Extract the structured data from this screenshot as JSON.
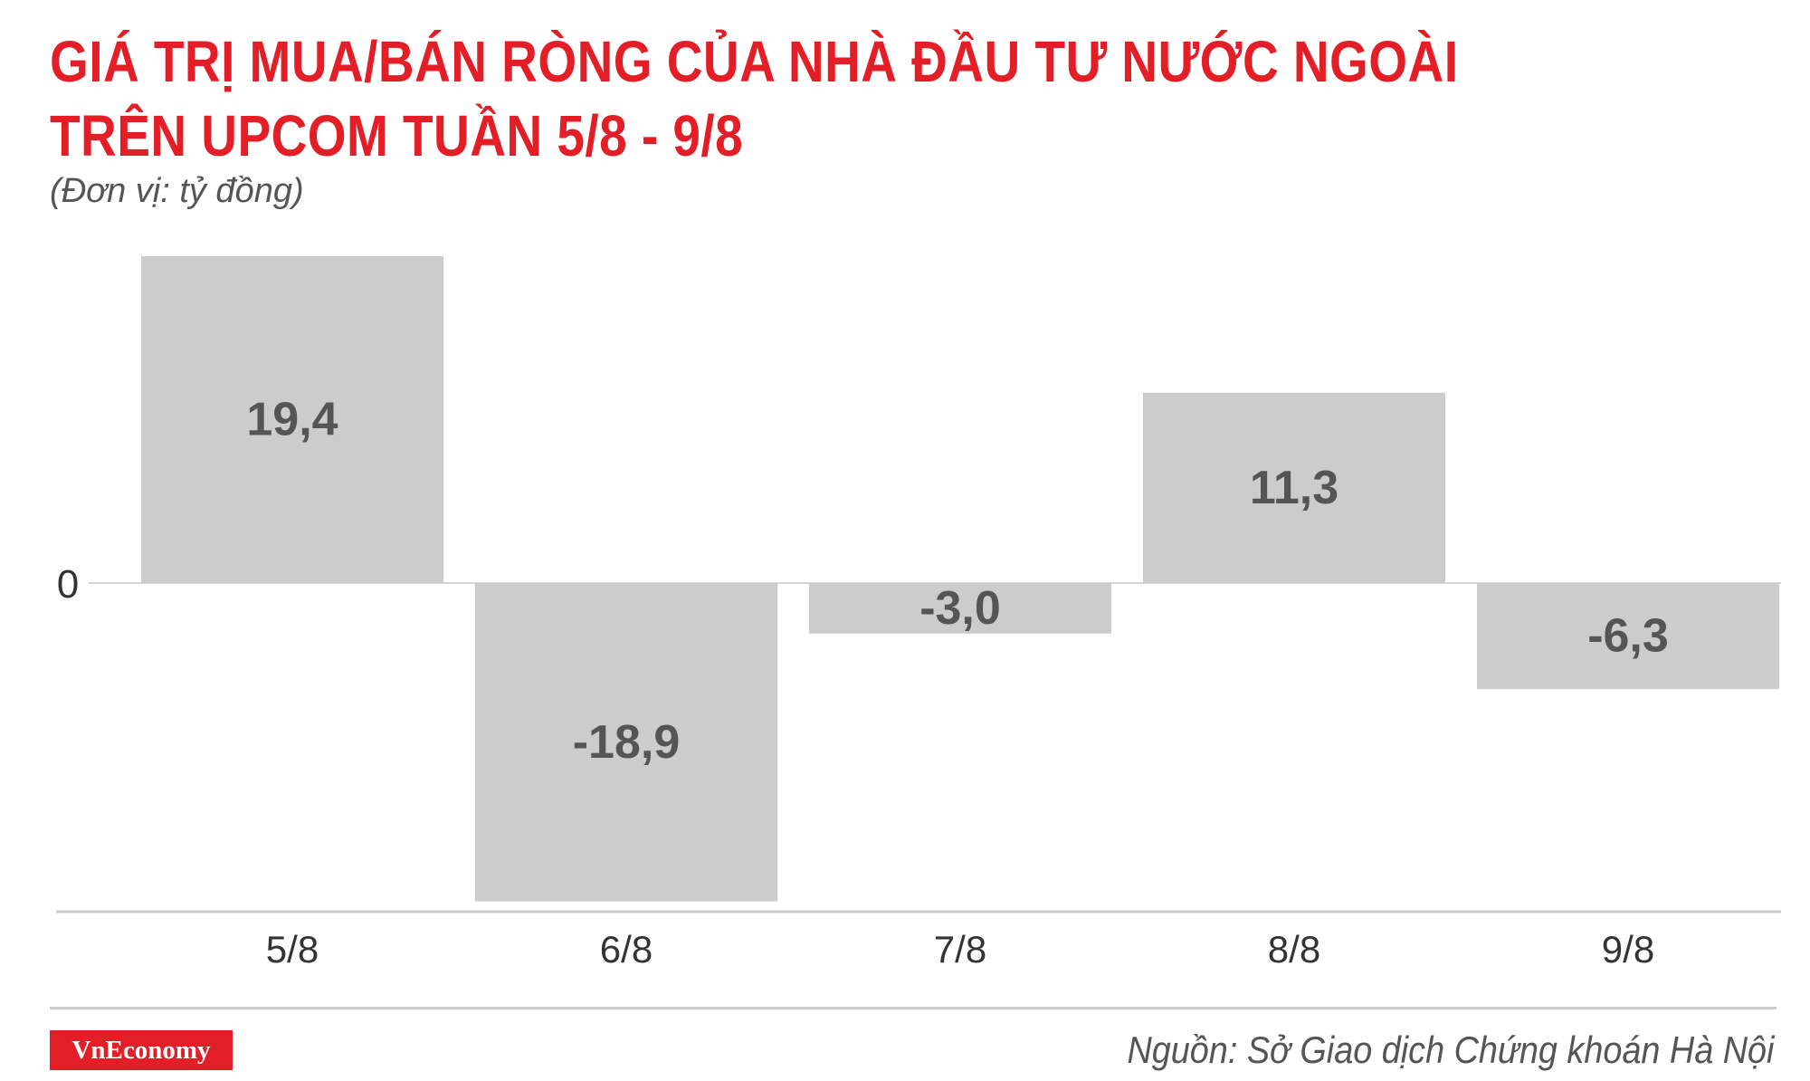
{
  "colors": {
    "title": "#e31e26",
    "bar": "#cccccc",
    "bar_label": "#555555",
    "axis_text": "#333333",
    "brand_bg": "#e31e26"
  },
  "title_lines": [
    "GIÁ TRỊ MUA/BÁN RÒNG CỦA NHÀ ĐẦU TƯ NƯỚC NGOÀI",
    "TRÊN UPCOM TUẦN 5/8 - 9/8"
  ],
  "unit": "(Đơn vị: tỷ đồng)",
  "source": "Nguồn: Sở Giao dịch Chứng khoán Hà Nội",
  "brand": "VnEconomy",
  "chart_data": {
    "type": "bar",
    "title": "GIÁ TRỊ MUA/BÁN RÒNG CỦA NHÀ ĐẦU TƯ NƯỚC NGOÀI TRÊN UPCOM TUẦN 5/8 - 9/8",
    "ylabel": "(Đơn vị: tỷ đồng)",
    "categories": [
      "5/8",
      "6/8",
      "7/8",
      "8/8",
      "9/8"
    ],
    "values": [
      19.4,
      -18.9,
      -3.0,
      11.3,
      -6.3
    ],
    "value_labels": [
      "19,4",
      "-18,9",
      "-3,0",
      "11,3",
      "-6,3"
    ],
    "zero_label": "0",
    "ylim": [
      -19.6,
      19.4
    ],
    "grid": false,
    "legend": "none"
  }
}
